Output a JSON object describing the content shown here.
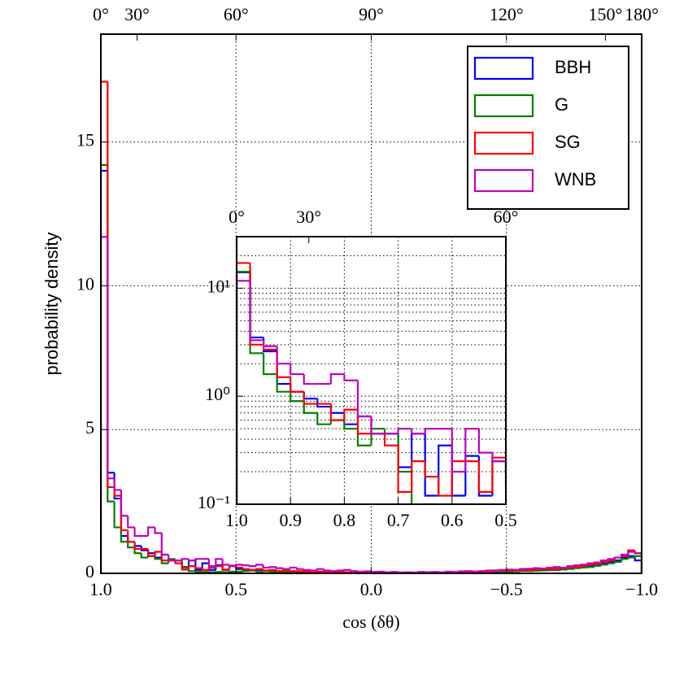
{
  "chart_data": [
    {
      "type": "histogram",
      "xlabel": "cos (δθ)",
      "ylabel": "probability density",
      "bins": [
        1,
        0.975,
        0.95,
        0.925,
        0.9,
        0.875,
        0.85,
        0.825,
        0.8,
        0.775,
        0.75,
        0.725,
        0.7,
        0.675,
        0.65,
        0.625,
        0.6,
        0.575,
        0.55,
        0.525,
        0.5,
        0.475,
        0.45,
        0.425,
        0.4,
        0.375,
        0.35,
        0.325,
        0.3,
        0.275,
        0.25,
        0.225,
        0.2,
        0.175,
        0.15,
        0.125,
        0.1,
        0.075,
        0.05,
        0.025,
        0,
        -0.025,
        -0.05,
        -0.075,
        -0.1,
        -0.125,
        -0.15,
        -0.175,
        -0.2,
        -0.225,
        -0.25,
        -0.275,
        -0.3,
        -0.325,
        -0.35,
        -0.375,
        -0.4,
        -0.425,
        -0.45,
        -0.475,
        -0.5,
        -0.525,
        -0.55,
        -0.575,
        -0.6,
        -0.625,
        -0.65,
        -0.675,
        -0.7,
        -0.725,
        -0.75,
        -0.775,
        -0.8,
        -0.825,
        -0.85,
        -0.875,
        -0.9,
        -0.925,
        -0.95,
        -0.975,
        -1
      ],
      "series": [
        {
          "name": "BBH",
          "color": "#0000ff",
          "values": [
            14.0,
            3.5,
            2.6,
            1.3,
            1.1,
            0.95,
            0.8,
            0.7,
            0.55,
            0.65,
            0.45,
            0.45,
            0.22,
            0.45,
            0.12,
            0.35,
            0.12,
            0.28,
            0.12,
            0.25,
            0.15,
            0.12,
            0.1,
            0.12,
            0.08,
            0.1,
            0.07,
            0.08,
            0.06,
            0.07,
            0.05,
            0.06,
            0.04,
            0.05,
            0.04,
            0.03,
            0.04,
            0.03,
            0.02,
            0.03,
            0.02,
            0.02,
            0.03,
            0.02,
            0.02,
            0.03,
            0.02,
            0.03,
            0.04,
            0.03,
            0.03,
            0.04,
            0.03,
            0.05,
            0.04,
            0.05,
            0.04,
            0.06,
            0.1,
            0.05,
            0.08,
            0.07,
            0.15,
            0.09,
            0.1,
            0.12,
            0.11,
            0.13,
            0.15,
            0.16,
            0.2,
            0.22,
            0.25,
            0.3,
            0.35,
            0.4,
            0.45,
            0.55,
            0.6,
            0.45
          ]
        },
        {
          "name": "G",
          "color": "#008000",
          "values": [
            14.2,
            2.5,
            1.6,
            1.1,
            0.9,
            0.7,
            0.55,
            0.6,
            0.5,
            0.35,
            0.5,
            0.45,
            0.2,
            0.08,
            0.05,
            0.05,
            0.04,
            0.05,
            0.04,
            0.06,
            0.06,
            0.08,
            0.1,
            0.05,
            0.07,
            0.06,
            0.05,
            0.06,
            0.05,
            0.04,
            0.04,
            0.05,
            0.03,
            0.04,
            0.03,
            0.03,
            0.02,
            0.03,
            0.02,
            0.02,
            0.02,
            0.02,
            0.01,
            0.02,
            0.02,
            0.01,
            0.02,
            0.02,
            0.03,
            0.02,
            0.03,
            0.03,
            0.02,
            0.04,
            0.03,
            0.04,
            0.04,
            0.05,
            0.05,
            0.06,
            0.06,
            0.07,
            0.08,
            0.08,
            0.09,
            0.1,
            0.12,
            0.11,
            0.13,
            0.15,
            0.18,
            0.2,
            0.22,
            0.26,
            0.3,
            0.35,
            0.4,
            0.5,
            0.55,
            0.6
          ]
        },
        {
          "name": "SG",
          "color": "#ff0000",
          "values": [
            17.1,
            3.0,
            2.7,
            1.5,
            1.1,
            0.85,
            0.85,
            0.6,
            0.75,
            0.45,
            0.45,
            0.35,
            0.13,
            0.25,
            0.18,
            0.12,
            0.25,
            0.25,
            0.13,
            0.27,
            0.2,
            0.15,
            0.12,
            0.15,
            0.1,
            0.12,
            0.08,
            0.1,
            0.08,
            0.07,
            0.06,
            0.05,
            0.06,
            0.04,
            0.05,
            0.04,
            0.03,
            0.04,
            0.03,
            0.03,
            0.02,
            0.03,
            0.02,
            0.03,
            0.03,
            0.02,
            0.03,
            0.04,
            0.03,
            0.04,
            0.04,
            0.05,
            0.04,
            0.06,
            0.05,
            0.06,
            0.07,
            0.06,
            0.08,
            0.09,
            0.1,
            0.09,
            0.12,
            0.11,
            0.13,
            0.15,
            0.14,
            0.16,
            0.18,
            0.2,
            0.22,
            0.25,
            0.3,
            0.33,
            0.4,
            0.45,
            0.55,
            0.6,
            0.8,
            0.7
          ]
        },
        {
          "name": "WNB",
          "color": "#bf00bf",
          "values": [
            11.7,
            3.3,
            2.9,
            2.0,
            1.6,
            1.3,
            1.3,
            1.6,
            1.4,
            0.65,
            0.45,
            0.45,
            0.5,
            0.45,
            0.5,
            0.5,
            0.2,
            0.5,
            0.3,
            0.25,
            0.3,
            0.28,
            0.25,
            0.3,
            0.2,
            0.22,
            0.18,
            0.15,
            0.2,
            0.15,
            0.12,
            0.1,
            0.15,
            0.1,
            0.08,
            0.1,
            0.12,
            0.08,
            0.06,
            0.07,
            0.05,
            0.06,
            0.04,
            0.05,
            0.03,
            0.04,
            0.03,
            0.05,
            0.04,
            0.05,
            0.04,
            0.06,
            0.05,
            0.07,
            0.08,
            0.06,
            0.08,
            0.1,
            0.09,
            0.12,
            0.13,
            0.12,
            0.15,
            0.16,
            0.18,
            0.17,
            0.2,
            0.22,
            0.2,
            0.25,
            0.28,
            0.3,
            0.35,
            0.38,
            0.45,
            0.5,
            0.55,
            0.65,
            0.75,
            0.7
          ]
        }
      ],
      "xlim": [
        1,
        -1
      ],
      "ylim": [
        0,
        18.75
      ],
      "xticks": [
        {
          "value": 1,
          "label": "1.0"
        },
        {
          "value": 0.5,
          "label": "0.5"
        },
        {
          "value": 0,
          "label": "0.0"
        },
        {
          "value": -0.5,
          "label": "−0.5"
        },
        {
          "value": -1,
          "label": "−1.0"
        }
      ],
      "yticks": [
        0,
        5,
        10,
        15
      ],
      "x2ticks": [
        {
          "value": 1,
          "label": "0°"
        },
        {
          "value": 0.866,
          "label": "30°"
        },
        {
          "value": 0.5,
          "label": "60°"
        },
        {
          "value": 0,
          "label": "90°"
        },
        {
          "value": -0.5,
          "label": "120°"
        },
        {
          "value": -0.866,
          "label": "150°"
        },
        {
          "value": -1,
          "label": "180°"
        }
      ],
      "grid": true,
      "legend": "upper right"
    },
    {
      "type": "histogram",
      "xlim": [
        1,
        0.5
      ],
      "ylim": [
        0.1,
        30
      ],
      "yscale": "log",
      "xticks": [
        {
          "value": 1,
          "label": "1.0"
        },
        {
          "value": 0.9,
          "label": "0.9"
        },
        {
          "value": 0.8,
          "label": "0.8"
        },
        {
          "value": 0.7,
          "label": "0.7"
        },
        {
          "value": 0.6,
          "label": "0.6"
        },
        {
          "value": 0.5,
          "label": "0.5"
        }
      ],
      "yticks": [
        {
          "value": 0.1,
          "label": "10⁻¹"
        },
        {
          "value": 1,
          "label": "10⁰"
        },
        {
          "value": 10,
          "label": "10¹"
        }
      ],
      "x2ticks": [
        {
          "value": 1,
          "label": "0°"
        },
        {
          "value": 0.866,
          "label": "30°"
        },
        {
          "value": 0.5,
          "label": "60°"
        }
      ],
      "grid": true,
      "minor_grid": true
    }
  ]
}
